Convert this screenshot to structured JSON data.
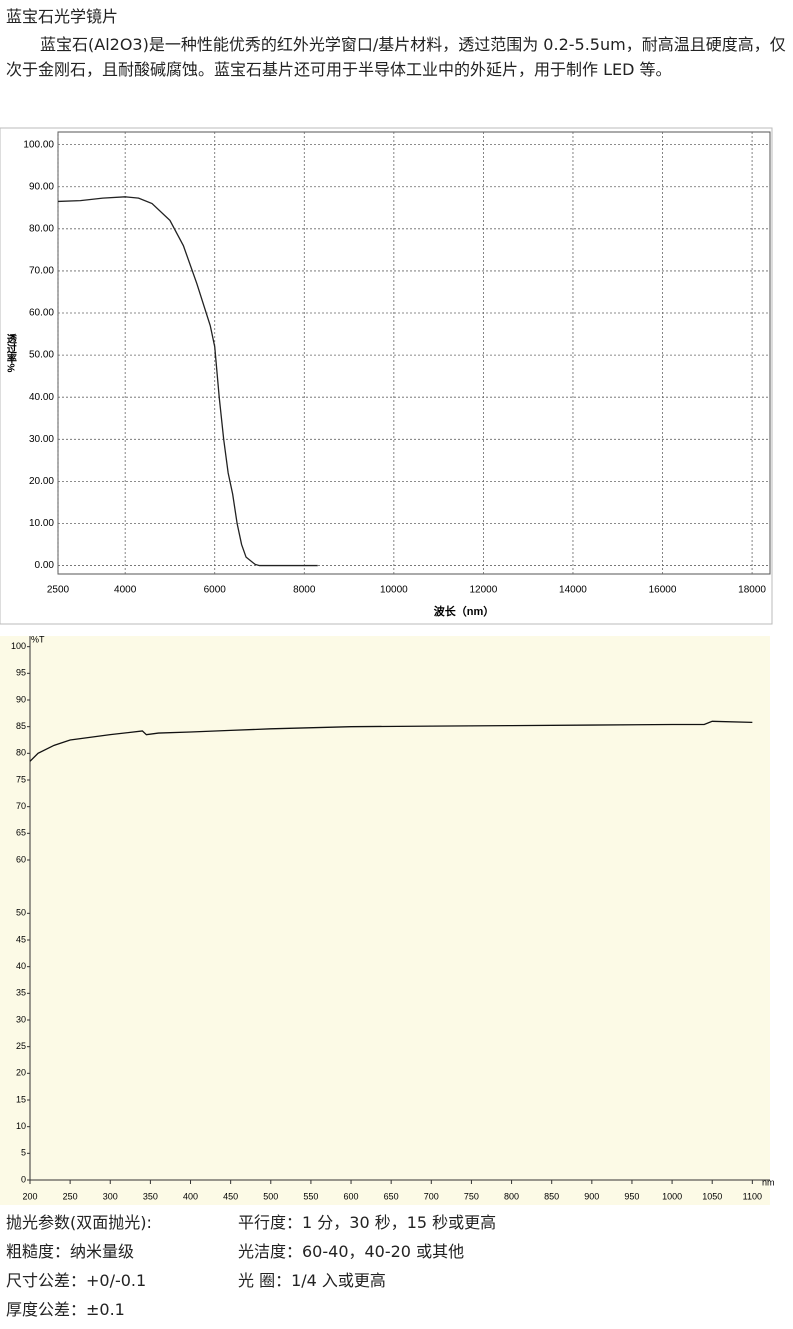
{
  "document": {
    "title": "蓝宝石光学镜片",
    "paragraph": "蓝宝石(Al2O3)是一种性能优秀的红外光学窗口/基片材料，透过范围为 0.2-5.5um，耐高温且硬度高，仅次于金刚石，且耐酸碱腐蚀。蓝宝石基片还可用于半导体工业中的外延片，用于制作 LED 等。",
    "specs": [
      [
        "抛光参数(双面抛光):",
        "平行度：1 分，30 秒，15 秒或更高"
      ],
      [
        "粗糙度：纳米量级",
        "光洁度：60-40，40-20 或其他"
      ],
      [
        "尺寸公差：+0/-0.1",
        "光 圈：1/4 入或更高"
      ],
      [
        "厚度公差：±0.1"
      ]
    ]
  },
  "chart_data": [
    {
      "type": "line",
      "x_label": "波长（nm）",
      "y_label": "透过率%",
      "color": "#222222",
      "grid": true,
      "background": "#ffffff",
      "xlim": [
        2500,
        18400
      ],
      "xticks": [
        2500,
        4000,
        6000,
        8000,
        10000,
        12000,
        14000,
        16000,
        18000
      ],
      "ylim": [
        -2,
        103
      ],
      "yticks": [
        {
          "value": 0,
          "label": "0.00"
        },
        {
          "value": 10,
          "label": "10.00"
        },
        {
          "value": 20,
          "label": "20.00"
        },
        {
          "value": 30,
          "label": "30.00"
        },
        {
          "value": 40,
          "label": "40.00"
        },
        {
          "value": 50,
          "label": "50.00"
        },
        {
          "value": 60,
          "label": "60.00"
        },
        {
          "value": 70,
          "label": "70.00"
        },
        {
          "value": 80,
          "label": "80.00"
        },
        {
          "value": 90,
          "label": "90.00"
        },
        {
          "value": 100,
          "label": "100.00"
        }
      ],
      "x": [
        2500,
        3000,
        3500,
        4000,
        4300,
        4600,
        5000,
        5300,
        5600,
        5900,
        6000,
        6100,
        6200,
        6300,
        6400,
        6500,
        6600,
        6700,
        6900,
        7000,
        7500,
        8300
      ],
      "values": [
        86.5,
        86.7,
        87.3,
        87.6,
        87.3,
        86,
        82,
        76,
        67,
        57,
        52,
        40,
        30,
        22,
        17,
        10,
        5,
        2,
        0.3,
        0,
        0,
        0
      ]
    },
    {
      "type": "line",
      "x_label": "nm",
      "y_label": "%T",
      "color": "#111111",
      "grid": false,
      "background": "#fcfae6",
      "xlim": [
        200,
        1122
      ],
      "xticks": [
        200,
        250,
        300,
        350,
        400,
        450,
        500,
        550,
        600,
        650,
        700,
        750,
        800,
        850,
        900,
        950,
        1000,
        1050,
        1100
      ],
      "ylim": [
        0,
        102
      ],
      "yticks": [
        0,
        5,
        10,
        15,
        20,
        25,
        30,
        35,
        40,
        45,
        50,
        60,
        65,
        70,
        75,
        80,
        85,
        90,
        95,
        100
      ],
      "x": [
        200,
        210,
        230,
        250,
        300,
        340,
        345,
        360,
        400,
        450,
        500,
        600,
        700,
        800,
        900,
        1000,
        1040,
        1050,
        1100
      ],
      "values": [
        78.5,
        80,
        81.5,
        82.5,
        83.5,
        84.2,
        83.5,
        83.8,
        84,
        84.3,
        84.6,
        85,
        85.1,
        85.2,
        85.3,
        85.4,
        85.4,
        86,
        85.8
      ]
    }
  ]
}
